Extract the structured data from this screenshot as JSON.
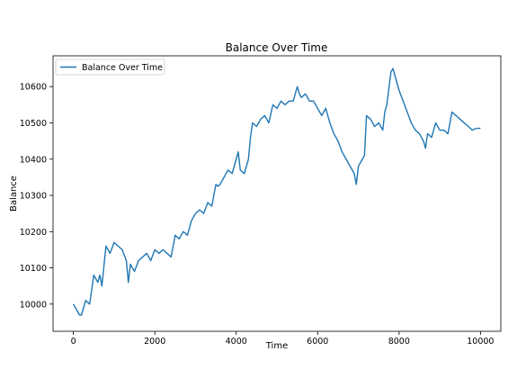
{
  "chart_data": {
    "type": "line",
    "title": "Balance Over Time",
    "xlabel": "Time",
    "ylabel": "Balance",
    "xlim": [
      -500,
      10500
    ],
    "ylim": [
      9925,
      10685
    ],
    "xticks": [
      0,
      2000,
      4000,
      6000,
      8000,
      10000
    ],
    "yticks": [
      10000,
      10100,
      10200,
      10300,
      10400,
      10500,
      10600
    ],
    "grid": false,
    "legend_position": "top-left",
    "series": [
      {
        "name": "Balance Over Time",
        "color": "#1f77b4",
        "x": [
          0,
          100,
          150,
          200,
          300,
          350,
          400,
          500,
          550,
          600,
          650,
          700,
          800,
          900,
          1000,
          1100,
          1200,
          1300,
          1350,
          1400,
          1500,
          1600,
          1700,
          1800,
          1900,
          2000,
          2100,
          2200,
          2300,
          2400,
          2500,
          2600,
          2700,
          2800,
          2900,
          3000,
          3100,
          3200,
          3300,
          3400,
          3500,
          3550,
          3600,
          3700,
          3800,
          3900,
          4000,
          4050,
          4100,
          4200,
          4300,
          4350,
          4400,
          4500,
          4600,
          4700,
          4800,
          4900,
          5000,
          5100,
          5200,
          5300,
          5400,
          5500,
          5550,
          5600,
          5700,
          5800,
          5900,
          6000,
          6100,
          6200,
          6300,
          6400,
          6500,
          6600,
          6700,
          6800,
          6900,
          6950,
          7000,
          7100,
          7150,
          7200,
          7300,
          7400,
          7500,
          7600,
          7650,
          7700,
          7800,
          7850,
          7900,
          8000,
          8100,
          8200,
          8300,
          8400,
          8500,
          8600,
          8650,
          8700,
          8800,
          8900,
          9000,
          9100,
          9200,
          9300,
          9400,
          9500,
          9600,
          9700,
          9800,
          9900,
          10000
        ],
        "values": [
          10000,
          9980,
          9970,
          9970,
          10010,
          10005,
          10000,
          10080,
          10070,
          10060,
          10080,
          10050,
          10160,
          10140,
          10170,
          10160,
          10150,
          10120,
          10060,
          10110,
          10090,
          10120,
          10130,
          10140,
          10120,
          10150,
          10140,
          10150,
          10140,
          10130,
          10190,
          10180,
          10200,
          10190,
          10230,
          10250,
          10260,
          10250,
          10280,
          10270,
          10330,
          10325,
          10330,
          10350,
          10370,
          10360,
          10400,
          10420,
          10370,
          10360,
          10400,
          10460,
          10500,
          10490,
          10510,
          10520,
          10500,
          10550,
          10540,
          10560,
          10550,
          10560,
          10560,
          10600,
          10580,
          10570,
          10580,
          10560,
          10560,
          10540,
          10520,
          10540,
          10500,
          10470,
          10450,
          10420,
          10400,
          10380,
          10360,
          10330,
          10380,
          10400,
          10410,
          10520,
          10510,
          10490,
          10500,
          10480,
          10530,
          10550,
          10640,
          10650,
          10630,
          10590,
          10560,
          10530,
          10500,
          10480,
          10470,
          10450,
          10430,
          10470,
          10460,
          10500,
          10480,
          10480,
          10470,
          10530,
          10520,
          10510,
          10500,
          10490,
          10480,
          10485,
          10485
        ]
      }
    ]
  }
}
